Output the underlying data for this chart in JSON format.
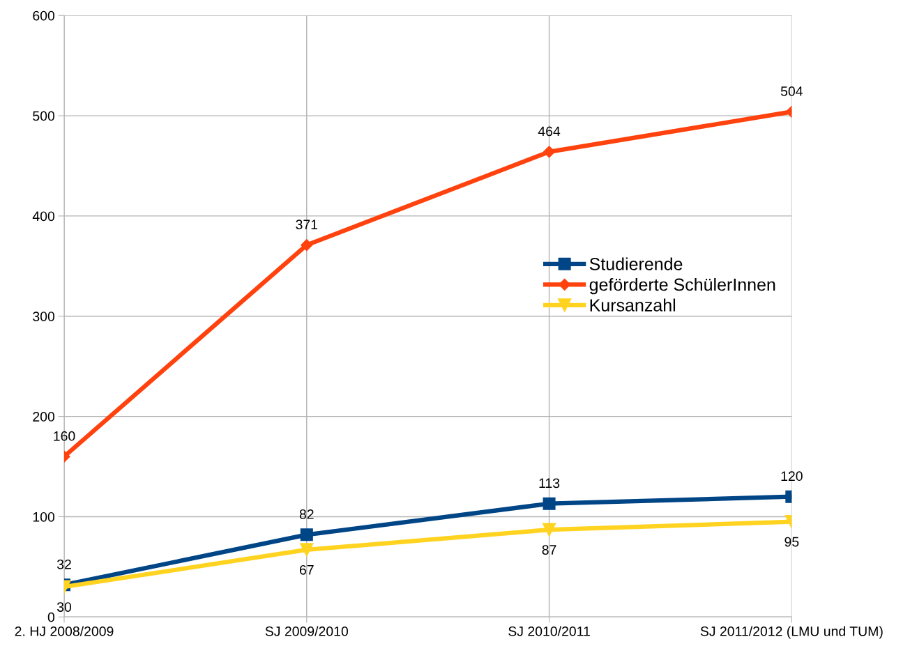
{
  "chart_data": {
    "type": "line",
    "categories": [
      "2. HJ 2008/2009",
      "SJ 2009/2010",
      "SJ 2010/2011",
      "SJ 2011/2012 (LMU und TUM)"
    ],
    "series": [
      {
        "name": "Studierende",
        "color": "#004586",
        "marker": "square",
        "values": [
          32,
          82,
          113,
          120
        ]
      },
      {
        "name": "geförderte SchülerInnen",
        "color": "#ff420e",
        "marker": "diamond",
        "values": [
          160,
          371,
          464,
          504
        ]
      },
      {
        "name": "Kursanzahl",
        "color": "#ffd320",
        "marker": "triangle_down",
        "values": [
          30,
          67,
          87,
          95
        ]
      }
    ],
    "ylim": [
      0,
      600
    ],
    "yticks": [
      0,
      100,
      200,
      300,
      400,
      500,
      600
    ],
    "grid": true,
    "legend": "center right",
    "data_labels": true
  }
}
